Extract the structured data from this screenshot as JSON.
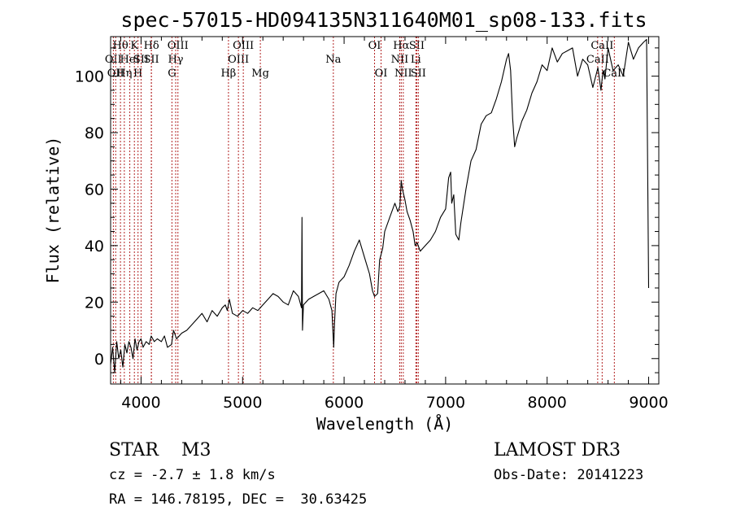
{
  "chart_data": {
    "type": "line",
    "title": "spec-57015-HD094135N311640M01_sp08-133.fits",
    "xlabel": "Wavelength (Å)",
    "ylabel": "Flux (relative)",
    "xlim": [
      3700,
      9100
    ],
    "ylim": [
      -9,
      114
    ],
    "xticks": [
      4000,
      5000,
      6000,
      7000,
      8000,
      9000
    ],
    "yticks": [
      0,
      20,
      40,
      60,
      80,
      100
    ],
    "series": [
      {
        "name": "spectrum",
        "x": [
          3700,
          3720,
          3740,
          3760,
          3780,
          3800,
          3820,
          3840,
          3860,
          3880,
          3900,
          3920,
          3940,
          3960,
          3980,
          4000,
          4020,
          4050,
          4080,
          4100,
          4130,
          4160,
          4200,
          4230,
          4260,
          4300,
          4320,
          4350,
          4400,
          4450,
          4500,
          4550,
          4600,
          4650,
          4700,
          4750,
          4800,
          4830,
          4850,
          4870,
          4900,
          4950,
          5000,
          5050,
          5100,
          5150,
          5200,
          5250,
          5300,
          5350,
          5400,
          5450,
          5500,
          5550,
          5580,
          5585,
          5590,
          5600,
          5650,
          5700,
          5750,
          5800,
          5850,
          5880,
          5892,
          5898,
          5905,
          5920,
          5950,
          6000,
          6050,
          6100,
          6150,
          6200,
          6250,
          6280,
          6300,
          6330,
          6350,
          6380,
          6400,
          6450,
          6500,
          6530,
          6550,
          6563,
          6575,
          6600,
          6620,
          6650,
          6680,
          6700,
          6720,
          6750,
          6800,
          6850,
          6900,
          6950,
          7000,
          7030,
          7050,
          7060,
          7080,
          7100,
          7130,
          7150,
          7200,
          7250,
          7300,
          7350,
          7400,
          7450,
          7500,
          7550,
          7600,
          7620,
          7640,
          7660,
          7680,
          7700,
          7750,
          7800,
          7850,
          7900,
          7950,
          8000,
          8050,
          8100,
          8150,
          8200,
          8250,
          8300,
          8350,
          8400,
          8450,
          8500,
          8530,
          8550,
          8570,
          8600,
          8650,
          8700,
          8750,
          8800,
          8850,
          8900,
          8950,
          8980,
          9000
        ],
        "values": [
          -2,
          4,
          -5,
          6,
          0,
          3,
          -3,
          5,
          2,
          6,
          4,
          0,
          7,
          3,
          6,
          7,
          4,
          6,
          5,
          8,
          6,
          7,
          6,
          8,
          4,
          5,
          10,
          7,
          9,
          10,
          12,
          14,
          16,
          13,
          17,
          15,
          18,
          19,
          17,
          21,
          16,
          15,
          17,
          16,
          18,
          17,
          19,
          21,
          23,
          22,
          20,
          19,
          24,
          22,
          18,
          50,
          10,
          19,
          21,
          22,
          23,
          24,
          21,
          17,
          8,
          4,
          12,
          23,
          27,
          29,
          33,
          38,
          42,
          36,
          30,
          24,
          22,
          23,
          35,
          39,
          45,
          50,
          55,
          52,
          54,
          63,
          60,
          56,
          52,
          49,
          45,
          40,
          41,
          38,
          40,
          42,
          45,
          50,
          53,
          64,
          66,
          55,
          58,
          44,
          42,
          48,
          60,
          70,
          74,
          83,
          86,
          87,
          92,
          98,
          106,
          108,
          102,
          85,
          75,
          78,
          84,
          88,
          94,
          98,
          104,
          102,
          110,
          105,
          108,
          109,
          110,
          100,
          106,
          104,
          96,
          103,
          95,
          102,
          99,
          110,
          102,
          104,
          100,
          112,
          106,
          110,
          112,
          113,
          25
        ]
      }
    ],
    "emission_lines": [
      {
        "x": 3727,
        "label": "OII",
        "row": 2
      },
      {
        "x": 3750,
        "label": "OII",
        "row": 3
      },
      {
        "x": 3797,
        "label": "Hθ",
        "row": 1
      },
      {
        "x": 3835,
        "label": "Hη",
        "row": 3
      },
      {
        "x": 3889,
        "label": "HeI",
        "row": 2
      },
      {
        "x": 3934,
        "label": "K",
        "row": 1
      },
      {
        "x": 3970,
        "label": "H",
        "row": 3
      },
      {
        "x": 4000,
        "label": "SII",
        "row": 2
      },
      {
        "x": 4102,
        "label": "Hδ",
        "row": 1
      },
      {
        "x": 4101,
        "label": "SII",
        "row": 2
      },
      {
        "x": 4304,
        "label": "G",
        "row": 3
      },
      {
        "x": 4341,
        "label": "Hγ",
        "row": 2
      },
      {
        "x": 4363,
        "label": "OIII",
        "row": 1
      },
      {
        "x": 4861,
        "label": "Hβ",
        "row": 3
      },
      {
        "x": 4959,
        "label": "OIII",
        "row": 2
      },
      {
        "x": 5007,
        "label": "OIII",
        "row": 1
      },
      {
        "x": 5175,
        "label": "Mg",
        "row": 3
      },
      {
        "x": 5894,
        "label": "Na",
        "row": 2
      },
      {
        "x": 6300,
        "label": "OI",
        "row": 1
      },
      {
        "x": 6364,
        "label": "OI",
        "row": 3
      },
      {
        "x": 6548,
        "label": "NII",
        "row": 2
      },
      {
        "x": 6563,
        "label": "Hα",
        "row": 1
      },
      {
        "x": 6583,
        "label": "NII",
        "row": 3
      },
      {
        "x": 6707,
        "label": "Li",
        "row": 2
      },
      {
        "x": 6716,
        "label": "SII",
        "row": 1
      },
      {
        "x": 6731,
        "label": "SII",
        "row": 3
      },
      {
        "x": 8498,
        "label": "CaII",
        "row": 2
      },
      {
        "x": 8542,
        "label": "CaII",
        "row": 1
      },
      {
        "x": 8662,
        "label": "CaII",
        "row": 3
      }
    ]
  },
  "info": {
    "class_line": "STAR    M3",
    "survey": "LAMOST DR3",
    "cz": "cz = -2.7 ± 1.8 km/s",
    "obs_date": "Obs-Date: 20141223",
    "coords": "RA = 146.78195, DEC =  30.63425"
  },
  "colors": {
    "spectrum": "#000000",
    "line_markers": "#b22222",
    "axes": "#000000",
    "background": "#ffffff"
  }
}
